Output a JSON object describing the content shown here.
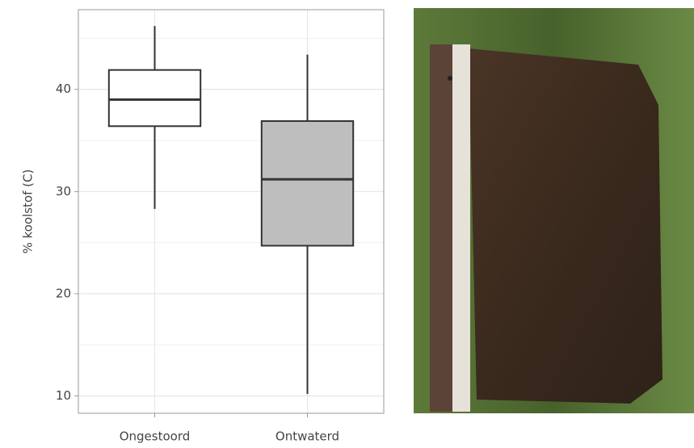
{
  "chart_data": {
    "type": "boxplot",
    "ylabel": "% koolstof (C)",
    "categories": [
      "Ongestoord",
      "Ontwaterd"
    ],
    "boxes": [
      {
        "min": 28.3,
        "q1": 36.4,
        "median": 39.0,
        "q3": 41.9,
        "max": 46.2,
        "fill": "#ffffff"
      },
      {
        "min": 10.2,
        "q1": 24.7,
        "median": 31.2,
        "q3": 36.9,
        "max": 43.4,
        "fill": "#bebebe"
      }
    ],
    "ylim": [
      8.3,
      47.8
    ],
    "yticks": [
      10,
      20,
      30,
      40
    ],
    "y_minor_ticks": [
      15,
      25,
      35,
      45
    ],
    "grid": true
  }
}
